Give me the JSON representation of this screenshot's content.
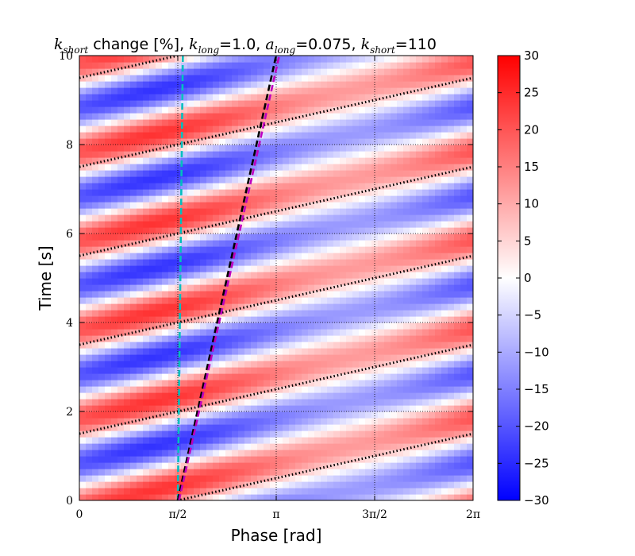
{
  "chart_data": {
    "type": "heatmap",
    "title_parts": {
      "k_short": "k",
      "k_short_sub": "short",
      "change": " change [%], ",
      "k_long": "k",
      "k_long_sub": "long",
      "k_long_val": "=1.0, ",
      "a_long": "a",
      "a_long_sub": "long",
      "a_long_val": "=0.075, ",
      "k_short2": "k",
      "k_short2_sub": "short",
      "k_short2_val": "=110"
    },
    "xlabel": "Phase [rad]",
    "ylabel": "Time [s]",
    "xlim": [
      0,
      6.2832
    ],
    "ylim": [
      0,
      10
    ],
    "x_ticks": [
      {
        "value": 0,
        "label": "0"
      },
      {
        "value": 1.5708,
        "label": "π/2"
      },
      {
        "value": 3.1416,
        "label": "π"
      },
      {
        "value": 4.7124,
        "label": "3π/2"
      },
      {
        "value": 6.2832,
        "label": "2π"
      }
    ],
    "y_ticks": [
      {
        "value": 0,
        "label": "0"
      },
      {
        "value": 2,
        "label": "2"
      },
      {
        "value": 4,
        "label": "4"
      },
      {
        "value": 6,
        "label": "6"
      },
      {
        "value": 8,
        "label": "8"
      },
      {
        "value": 10,
        "label": "10"
      }
    ],
    "grid": true,
    "colorbar": {
      "min": -30,
      "max": 30,
      "ticks": [
        30,
        25,
        20,
        15,
        10,
        5,
        0,
        -5,
        -10,
        -15,
        -20,
        -25,
        -30
      ],
      "colormap": "bwr"
    },
    "field": {
      "description_formula": "stripes tilted, period 2 s in time",
      "amplitude": 20,
      "time_period": 2.0,
      "stripe_slope_rad_per_s": 3.1416
    },
    "lines": [
      {
        "name": "black-dotted",
        "style": "dotted",
        "color": "#000000",
        "segments": [
          [
            [
              0,
              -0.5
            ],
            [
              6.2832,
              1.5
            ]
          ],
          [
            [
              0,
              1.5
            ],
            [
              6.2832,
              3.5
            ]
          ],
          [
            [
              0,
              3.5
            ],
            [
              6.2832,
              5.5
            ]
          ],
          [
            [
              0,
              5.5
            ],
            [
              6.2832,
              7.5
            ]
          ],
          [
            [
              0,
              7.5
            ],
            [
              6.2832,
              9.5
            ]
          ],
          [
            [
              0,
              9.5
            ],
            [
              6.2832,
              11.5
            ]
          ]
        ]
      },
      {
        "name": "cyan-dashed",
        "style": "dashed",
        "color": "#00bfbf",
        "segments": [
          [
            [
              1.571,
              0
            ],
            [
              1.651,
              10
            ]
          ]
        ]
      },
      {
        "name": "black-dashed",
        "style": "dashed",
        "color": "#000000",
        "segments": [
          [
            [
              1.571,
              0
            ],
            [
              3.14,
              10
            ]
          ]
        ]
      },
      {
        "name": "magenta-dashed",
        "style": "dashed",
        "color": "#bf00bf",
        "segments": [
          [
            [
              1.59,
              0
            ],
            [
              3.19,
              10
            ]
          ]
        ]
      }
    ]
  }
}
